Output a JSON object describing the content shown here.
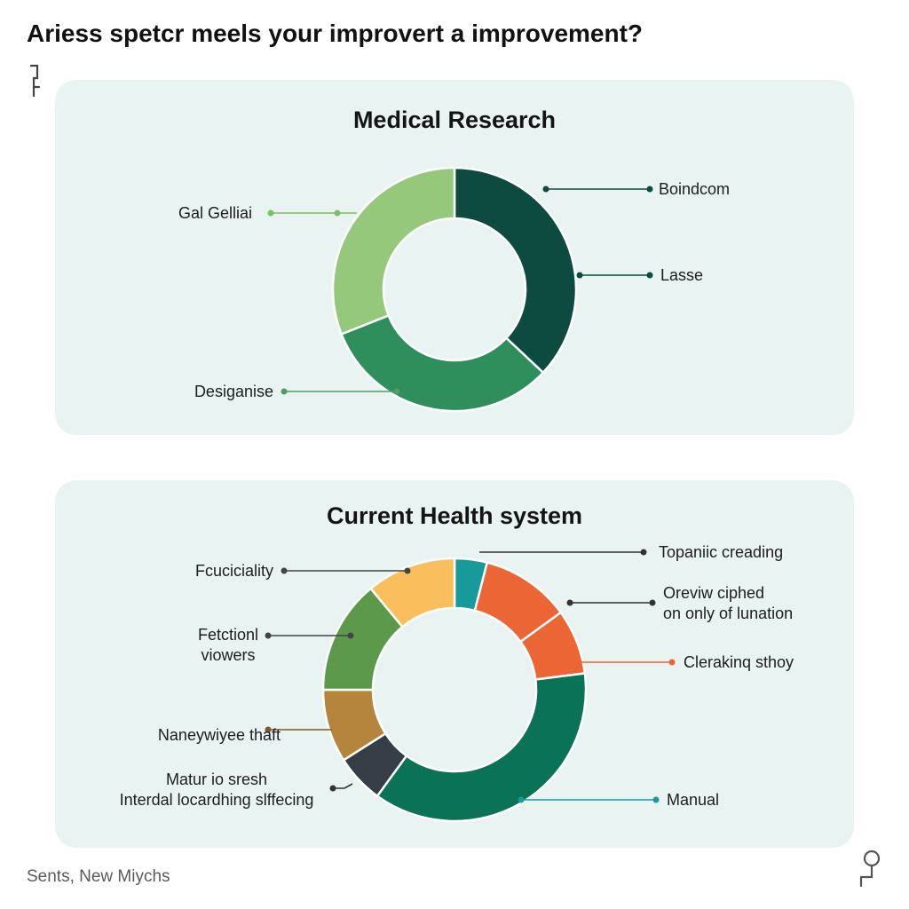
{
  "header": {
    "title": "Ariess spetcr meels your improvert a improvement?"
  },
  "footer": {
    "note": "Sents, New Miychs"
  },
  "colors": {
    "panel_bg": "#e8f3f2"
  },
  "chart_data": [
    {
      "type": "pie",
      "title": "Medical Research",
      "donut": true,
      "labels": [
        "Boindcom",
        "Lasse",
        "Desiganise",
        "Gal Gelliai"
      ],
      "values": [
        37,
        0,
        32,
        31
      ],
      "colors": [
        "#0d4a3f",
        "#0d4a3f",
        "#2e8f5c",
        "#95c87a"
      ]
    },
    {
      "type": "pie",
      "title": "Current Health system",
      "donut": true,
      "labels": [
        "Topaniic creading",
        "Oreviw ciphed on only of lunation",
        "Clerakinq sthoy",
        "Manual",
        "Matur io sresh Interdal locardhing slffecing",
        "Naneywiyee thaft",
        "Fetctionl viowers",
        "Fcuciciality"
      ],
      "values": [
        4,
        11,
        8,
        37,
        6,
        9,
        14,
        11
      ],
      "colors": [
        "#169a9a",
        "#ec6534",
        "#ec6534",
        "#0a7256",
        "#363d47",
        "#b5853e",
        "#5d994a",
        "#f8bf5c"
      ]
    }
  ]
}
